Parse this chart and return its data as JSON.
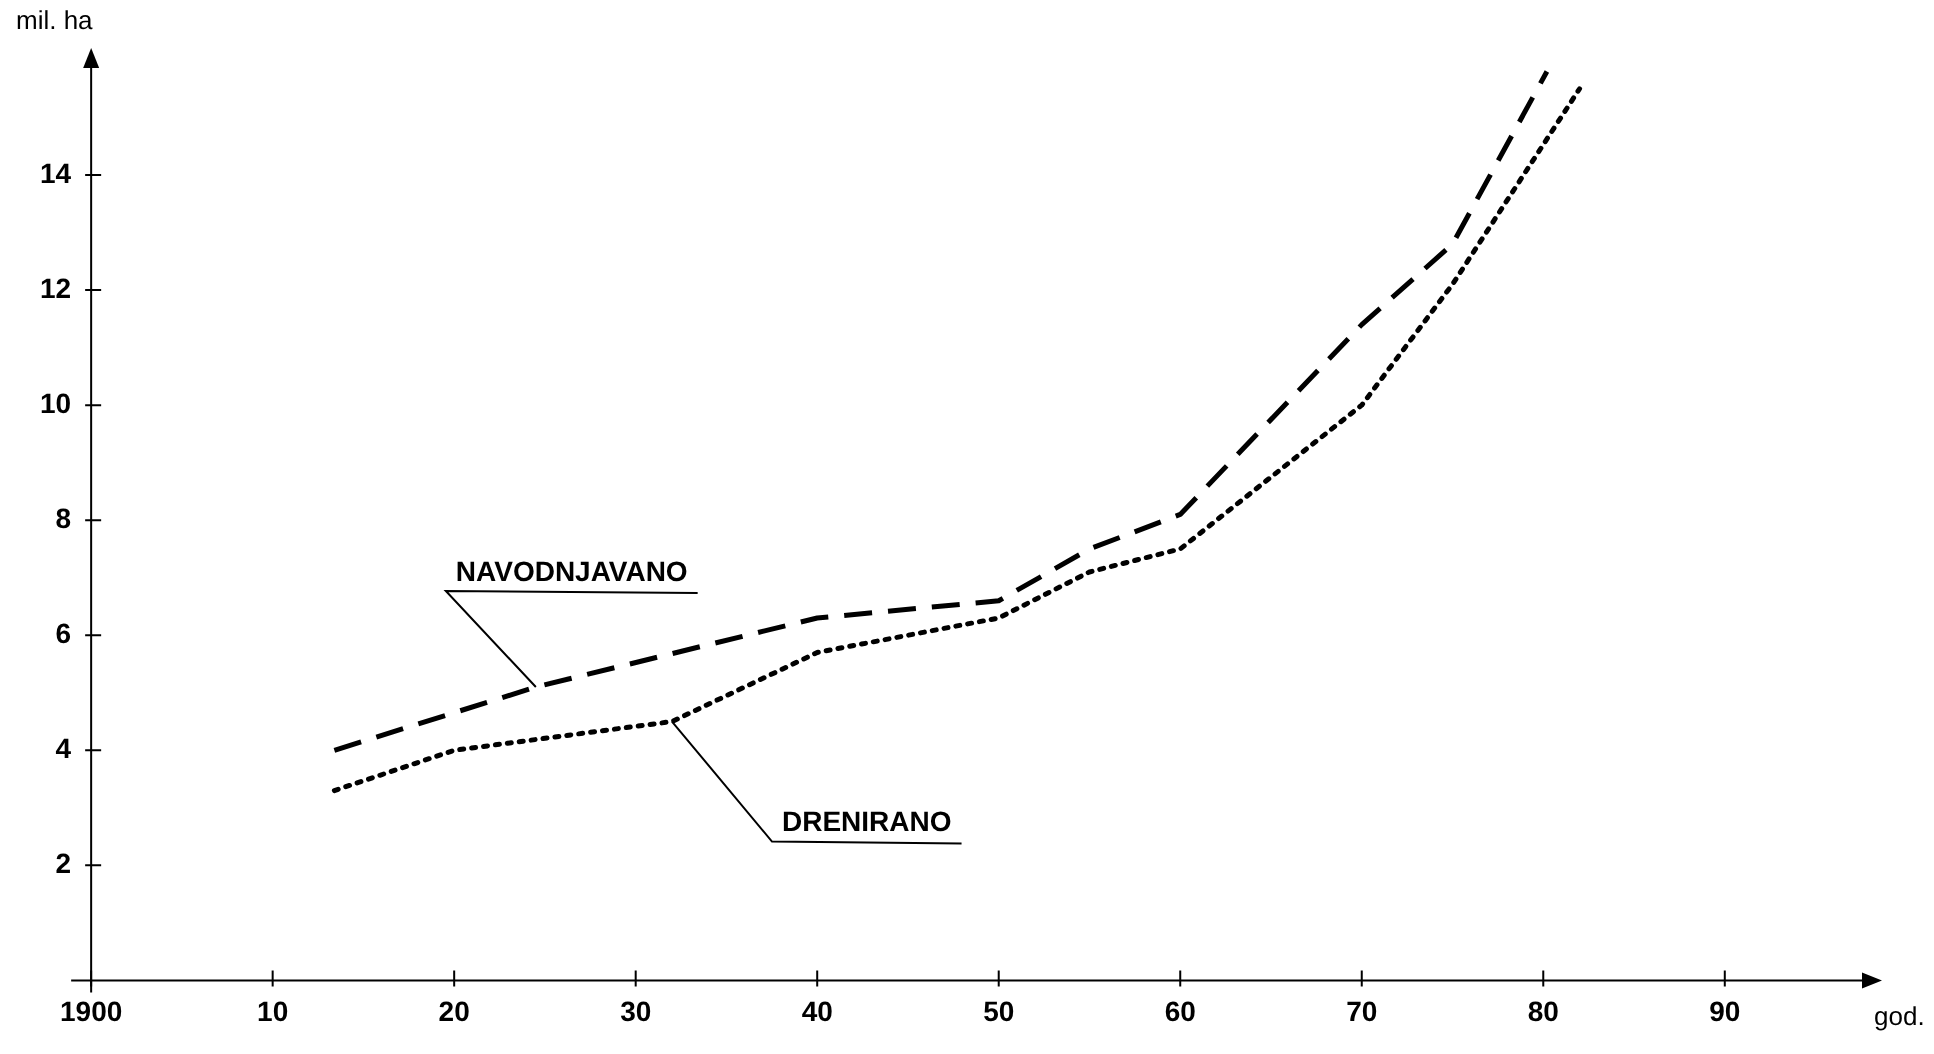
{
  "chart_data": {
    "type": "line",
    "xlabel": "god.",
    "ylabel": "mil. ha",
    "xlim": [
      1900,
      1998
    ],
    "ylim": [
      0,
      16
    ],
    "xticks": [
      1900,
      {
        "value": 1910,
        "label": "10"
      },
      {
        "value": 1920,
        "label": "20"
      },
      {
        "value": 1930,
        "label": "30"
      },
      {
        "value": 1940,
        "label": "40"
      },
      {
        "value": 1950,
        "label": "50"
      },
      {
        "value": 1960,
        "label": "60"
      },
      {
        "value": 1970,
        "label": "70"
      },
      {
        "value": 1980,
        "label": "80"
      },
      {
        "value": 1990,
        "label": "90"
      }
    ],
    "yticks": [
      2,
      4,
      6,
      8,
      10,
      12,
      14
    ],
    "grid": false,
    "legend": false,
    "marker": "none",
    "series": [
      {
        "name": "NAVODNJAVANO",
        "color": "#000000",
        "line_style": "dashed",
        "x": [
          1913.4,
          1924.5,
          1940,
          1950,
          1955,
          1960,
          1970,
          1975,
          1980.2
        ],
        "values": [
          4.0,
          5.1,
          6.3,
          6.6,
          7.5,
          8.1,
          11.4,
          12.8,
          15.8
        ]
      },
      {
        "name": "DRENIRANO",
        "color": "#000000",
        "line_style": "dotted",
        "x": [
          1913.4,
          1920,
          1932,
          1940,
          1950,
          1955,
          1960,
          1970,
          1975,
          1982
        ],
        "values": [
          3.3,
          4.0,
          4.5,
          5.7,
          6.3,
          7.1,
          7.5,
          10.0,
          12.1,
          15.5
        ]
      }
    ]
  }
}
